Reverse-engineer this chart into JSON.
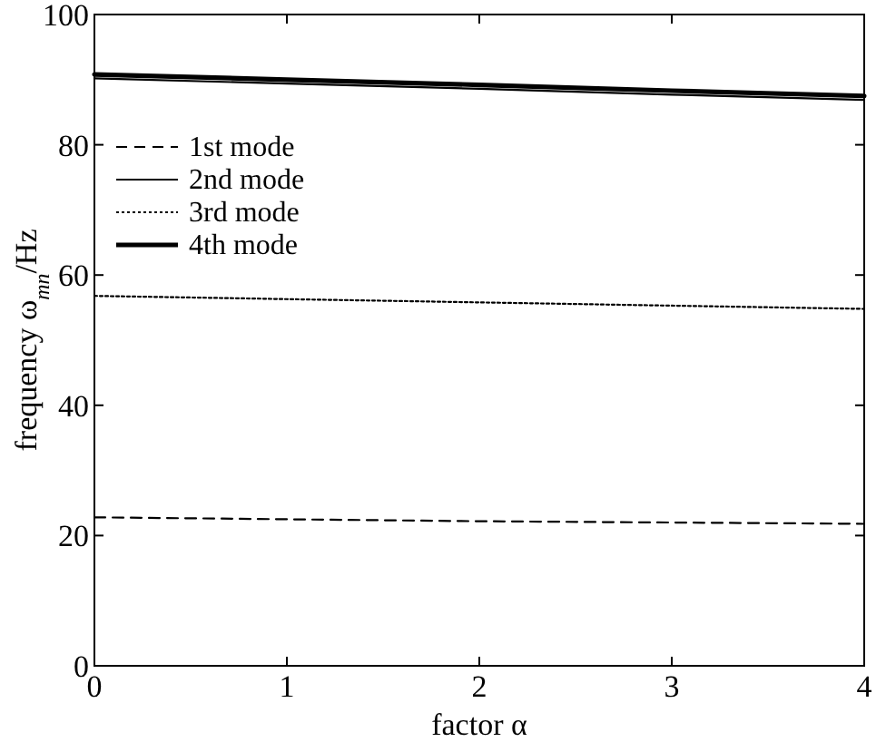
{
  "chart_data": {
    "type": "line",
    "xlabel": "factor α",
    "ylabel": "frequency ω$_{mn}$/Hz",
    "x": [
      0,
      1,
      2,
      3,
      4
    ],
    "xlim": [
      0,
      4
    ],
    "ylim": [
      0,
      100
    ],
    "xticks": [
      0,
      1,
      2,
      3,
      4
    ],
    "yticks": [
      0,
      20,
      40,
      60,
      80,
      100
    ],
    "grid": false,
    "legend": "top left",
    "series": [
      {
        "name": "1st mode",
        "color": "#000000",
        "line_style": "dashed",
        "values": [
          22.8,
          22.5,
          22.2,
          22.0,
          21.8
        ]
      },
      {
        "name": "2nd mode",
        "color": "#000000",
        "line_style": "solid",
        "values": [
          90.2,
          89.4,
          88.6,
          87.7,
          86.9
        ]
      },
      {
        "name": "3rd mode",
        "color": "#000000",
        "line_style": "dotted",
        "values": [
          56.8,
          56.3,
          55.8,
          55.3,
          54.8
        ]
      },
      {
        "name": "4th mode",
        "color": "#000000",
        "line_style": "solid",
        "values": [
          90.8,
          90.0,
          89.2,
          88.3,
          87.5
        ]
      }
    ]
  }
}
